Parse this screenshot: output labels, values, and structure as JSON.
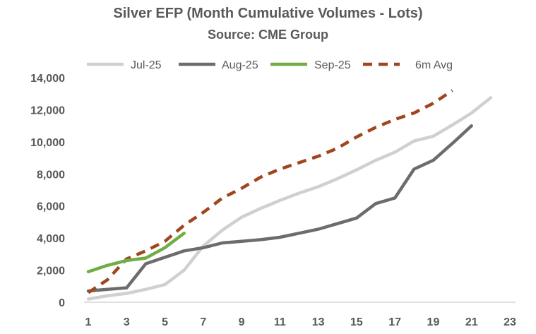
{
  "chart_data": {
    "type": "line",
    "title": "Silver EFP (Month Cumulative Volumes - Lots)",
    "subtitle": "Source: CME Group",
    "xlabel": "",
    "ylabel": "",
    "xlim": [
      1,
      23
    ],
    "ylim": [
      0,
      14000
    ],
    "x_ticks": [
      1,
      3,
      5,
      7,
      9,
      11,
      13,
      15,
      17,
      19,
      21,
      23
    ],
    "y_ticks": [
      0,
      2000,
      4000,
      6000,
      8000,
      10000,
      12000,
      14000
    ],
    "y_tick_labels": [
      "0",
      "2,000",
      "4,000",
      "6,000",
      "8,000",
      "10,000",
      "12,000",
      "14,000"
    ],
    "grid": false,
    "legend": "top",
    "series": [
      {
        "name": "Jul-25",
        "color": "#d0d0d0",
        "dash": false,
        "x": [
          1,
          2,
          3,
          4,
          5,
          6,
          7,
          8,
          9,
          10,
          11,
          12,
          13,
          14,
          15,
          16,
          17,
          18,
          19,
          20,
          21,
          22
        ],
        "y": [
          200,
          400,
          550,
          800,
          1100,
          2000,
          3500,
          4500,
          5300,
          5850,
          6350,
          6800,
          7200,
          7700,
          8250,
          8850,
          9350,
          10050,
          10350,
          11050,
          11800,
          12750
        ]
      },
      {
        "name": "Aug-25",
        "color": "#6d6b6b",
        "dash": false,
        "x": [
          1,
          2,
          3,
          4,
          5,
          6,
          7,
          8,
          9,
          10,
          11,
          12,
          13,
          14,
          15,
          16,
          17,
          18,
          19,
          20,
          21
        ],
        "y": [
          700,
          800,
          900,
          2400,
          2800,
          3200,
          3400,
          3700,
          3800,
          3900,
          4050,
          4300,
          4550,
          4900,
          5250,
          6150,
          6500,
          8300,
          8850,
          9900,
          11000
        ]
      },
      {
        "name": "Sep-25",
        "color": "#70ad47",
        "dash": false,
        "x": [
          1,
          2,
          3,
          4,
          5,
          6
        ],
        "y": [
          1900,
          2300,
          2600,
          2750,
          3400,
          4300
        ]
      },
      {
        "name": "6m Avg",
        "color": "#a0461e",
        "dash": true,
        "x": [
          1,
          2,
          3,
          4,
          5,
          6,
          7,
          8,
          9,
          10,
          11,
          12,
          13,
          14,
          15,
          16,
          17,
          18,
          19,
          20
        ],
        "y": [
          600,
          1400,
          2700,
          3200,
          3800,
          4800,
          5600,
          6500,
          7100,
          7800,
          8300,
          8700,
          9100,
          9600,
          10300,
          10900,
          11400,
          11800,
          12400,
          13200
        ]
      }
    ]
  }
}
